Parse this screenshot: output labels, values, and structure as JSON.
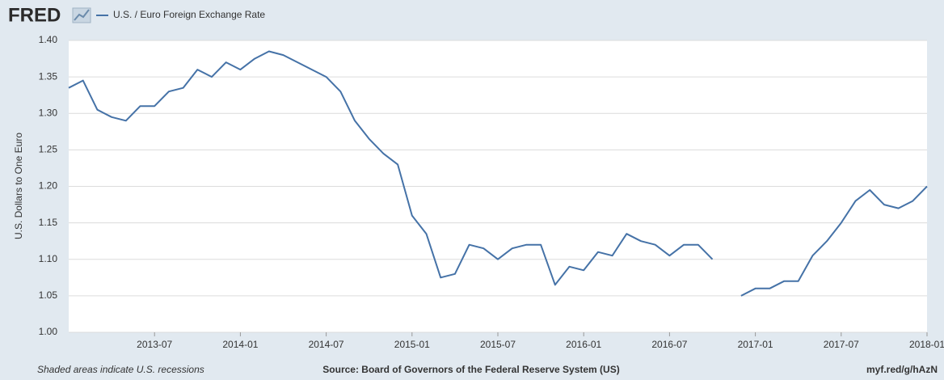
{
  "logo": "FRED",
  "footer": {
    "note": "Shaded areas indicate U.S. recessions",
    "source": "Source: Board of Governors of the Federal Reserve System (US)",
    "link": "myf.red/g/hAzN"
  },
  "chart_data": {
    "type": "line",
    "ylabel": "U.S. Dollars to One Euro",
    "x": [
      "2013-01",
      "2013-02",
      "2013-03",
      "2013-04",
      "2013-05",
      "2013-06",
      "2013-07",
      "2013-08",
      "2013-09",
      "2013-10",
      "2013-11",
      "2013-12",
      "2014-01",
      "2014-02",
      "2014-03",
      "2014-04",
      "2014-05",
      "2014-06",
      "2014-07",
      "2014-08",
      "2014-09",
      "2014-10",
      "2014-11",
      "2014-12",
      "2015-01",
      "2015-02",
      "2015-03",
      "2015-04",
      "2015-05",
      "2015-06",
      "2015-07",
      "2015-08",
      "2015-09",
      "2015-10",
      "2015-11",
      "2015-12",
      "2016-01",
      "2016-02",
      "2016-03",
      "2016-04",
      "2016-05",
      "2016-06",
      "2016-07",
      "2016-08",
      "2016-09",
      "2016-10",
      "2016-11",
      "2016-12",
      "2017-01",
      "2017-02",
      "2017-03",
      "2017-04",
      "2017-05",
      "2017-06",
      "2017-07",
      "2017-08",
      "2017-09",
      "2017-10",
      "2017-11",
      "2017-12",
      "2018-01"
    ],
    "series": [
      {
        "name": "U.S. / Euro Foreign Exchange Rate",
        "color": "#4572a7",
        "values": [
          1.335,
          1.345,
          1.305,
          1.295,
          1.29,
          1.31,
          1.31,
          1.33,
          1.335,
          1.36,
          1.35,
          1.37,
          1.36,
          1.375,
          1.385,
          1.38,
          1.37,
          1.36,
          1.35,
          1.33,
          1.29,
          1.265,
          1.245,
          1.23,
          1.16,
          1.135,
          1.075,
          1.08,
          1.12,
          1.115,
          1.1,
          1.115,
          1.12,
          1.12,
          1.065,
          1.09,
          1.085,
          1.11,
          1.105,
          1.135,
          1.125,
          1.12,
          1.105,
          1.12,
          1.12,
          1.1,
          null,
          1.05,
          1.06,
          1.06,
          1.07,
          1.07,
          1.105,
          1.125,
          1.15,
          1.18,
          1.195,
          1.175,
          1.17,
          1.18,
          1.2
        ]
      }
    ],
    "xlim": [
      "2013-01",
      "2018-01"
    ],
    "xticks": [
      "2013-07",
      "2014-01",
      "2014-07",
      "2015-01",
      "2015-07",
      "2016-01",
      "2016-07",
      "2017-01",
      "2017-07",
      "2018-01"
    ],
    "ylim": [
      1.0,
      1.4
    ],
    "yticks": [
      {
        "value": 1.0,
        "label": "1.00"
      },
      1.05,
      {
        "value": 1.1,
        "label": "1.10"
      },
      1.15,
      {
        "value": 1.2,
        "label": "1.20"
      },
      1.25,
      {
        "value": 1.3,
        "label": "1.30"
      },
      1.35,
      {
        "value": 1.4,
        "label": "1.40"
      }
    ],
    "grid": true
  }
}
